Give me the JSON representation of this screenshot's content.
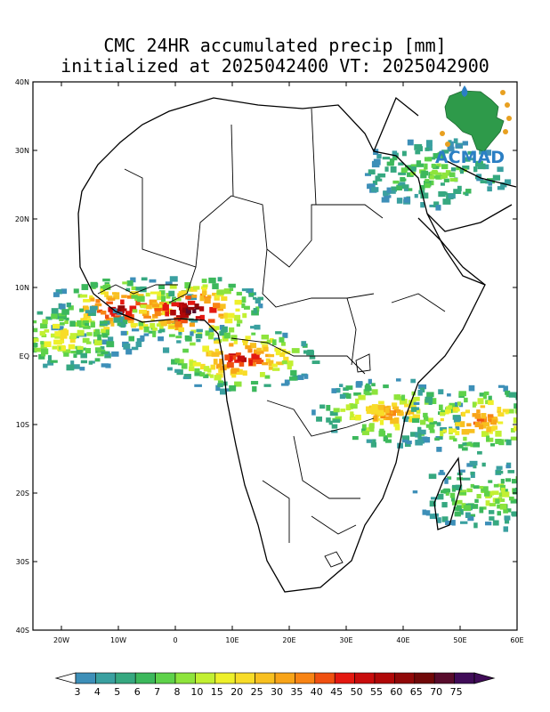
{
  "title": {
    "line1": "CMC 24HR accumulated precip [mm]",
    "line2": "initialized at 2025042400 VT: 2025042900"
  },
  "axes": {
    "lon_range": [
      -25,
      60
    ],
    "lat_range": [
      -40,
      40
    ],
    "lat_ticks": [
      {
        "value": 40,
        "label": "40N"
      },
      {
        "value": 30,
        "label": "30N"
      },
      {
        "value": 20,
        "label": "20N"
      },
      {
        "value": 10,
        "label": "10N"
      },
      {
        "value": 0,
        "label": "EQ"
      },
      {
        "value": -10,
        "label": "10S"
      },
      {
        "value": -20,
        "label": "20S"
      },
      {
        "value": -30,
        "label": "30S"
      },
      {
        "value": -40,
        "label": "40S"
      }
    ],
    "lon_ticks": [
      {
        "value": -20,
        "label": "20W"
      },
      {
        "value": -10,
        "label": "10W"
      },
      {
        "value": 0,
        "label": "0"
      },
      {
        "value": 10,
        "label": "10E"
      },
      {
        "value": 20,
        "label": "20E"
      },
      {
        "value": 30,
        "label": "30E"
      },
      {
        "value": 40,
        "label": "40E"
      },
      {
        "value": 50,
        "label": "50E"
      },
      {
        "value": 60,
        "label": "60E"
      }
    ]
  },
  "colorbar": {
    "levels": [
      "3",
      "4",
      "5",
      "6",
      "7",
      "8",
      "10",
      "15",
      "20",
      "25",
      "30",
      "35",
      "40",
      "45",
      "50",
      "55",
      "60",
      "65",
      "70",
      "75"
    ],
    "colors": [
      "#3d8fb8",
      "#3aa0a0",
      "#36a880",
      "#3cb85c",
      "#5ed24a",
      "#8ee43c",
      "#c2f032",
      "#eef02a",
      "#f8dc28",
      "#f8c020",
      "#f8a418",
      "#f88414",
      "#f05010",
      "#e41810",
      "#c80c0c",
      "#b00808",
      "#900808",
      "#700808",
      "#580c2c",
      "#400c58"
    ]
  },
  "logo": {
    "text": "ACMAD",
    "colors": {
      "primary": "#2b7fc4",
      "africa": "#2e9a4a",
      "accent": "#e8a020"
    }
  },
  "precip_regions": [
    {
      "lon": -10,
      "lat": 7,
      "level": "60"
    },
    {
      "lon": 2,
      "lat": 7,
      "level": "70"
    },
    {
      "lon": 11,
      "lat": 0,
      "level": "55"
    },
    {
      "lon": 37,
      "lat": -8,
      "level": "35"
    },
    {
      "lon": 45,
      "lat": 27,
      "level": "8"
    },
    {
      "lon": 55,
      "lat": -20,
      "level": "10"
    },
    {
      "lon": -20,
      "lat": 3,
      "level": "20"
    },
    {
      "lon": 53,
      "lat": -9,
      "level": "40"
    }
  ]
}
